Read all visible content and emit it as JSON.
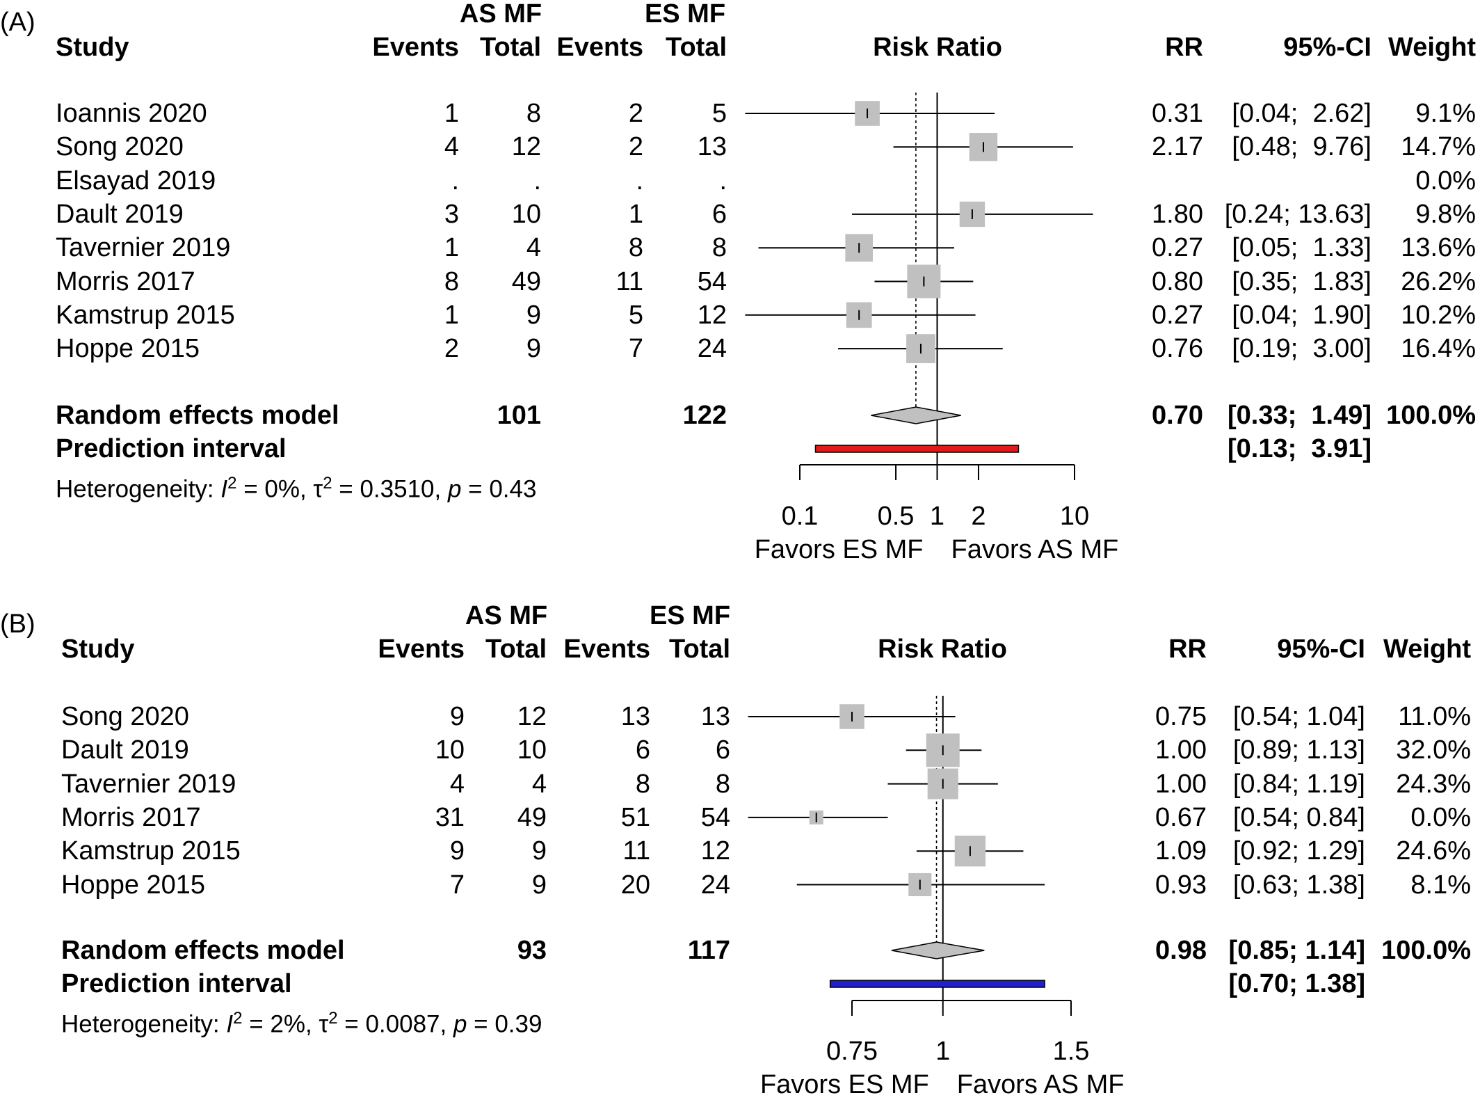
{
  "chart_data": [
    {
      "type": "forest",
      "panel_label": "(A)",
      "group_headers": {
        "experimental": "AS MF",
        "control": "ES MF"
      },
      "columns": {
        "study": "Study",
        "events_e": "Events",
        "total_e": "Total",
        "events_c": "Events",
        "total_c": "Total",
        "plot": "Risk Ratio",
        "rr": "RR",
        "ci": "95%-CI",
        "weight": "Weight"
      },
      "x_scale": "log",
      "x_ticks": [
        {
          "value": 0.1,
          "label": "0.1"
        },
        {
          "value": 0.5,
          "label": "0.5"
        },
        {
          "value": 1,
          "label": "1"
        },
        {
          "value": 2,
          "label": "2"
        },
        {
          "value": 10,
          "label": "10"
        }
      ],
      "xlim": [
        0.1,
        10
      ],
      "favors_left": "Favors ES MF",
      "favors_right": "Favors AS MF",
      "studies": [
        {
          "study": "Ioannis 2020",
          "events_e": "1",
          "total_e": "8",
          "events_c": "2",
          "total_c": "5",
          "rr": 0.31,
          "lower": 0.04,
          "upper": 2.62,
          "weight": 9.1,
          "rr_text": "0.31",
          "ci_text": "[0.04;  2.62]",
          "weight_text": "9.1%"
        },
        {
          "study": "Song 2020",
          "events_e": "4",
          "total_e": "12",
          "events_c": "2",
          "total_c": "13",
          "rr": 2.17,
          "lower": 0.48,
          "upper": 9.76,
          "weight": 14.7,
          "rr_text": "2.17",
          "ci_text": "[0.48;  9.76]",
          "weight_text": "14.7%"
        },
        {
          "study": "Elsayad 2019",
          "events_e": ".",
          "total_e": ".",
          "events_c": ".",
          "total_c": ".",
          "rr": null,
          "lower": null,
          "upper": null,
          "weight": 0.0,
          "rr_text": "",
          "ci_text": "",
          "weight_text": "0.0%"
        },
        {
          "study": "Dault 2019",
          "events_e": "3",
          "total_e": "10",
          "events_c": "1",
          "total_c": "6",
          "rr": 1.8,
          "lower": 0.24,
          "upper": 13.63,
          "weight": 9.8,
          "rr_text": "1.80",
          "ci_text": "[0.24; 13.63]",
          "weight_text": "9.8%"
        },
        {
          "study": "Tavernier 2019",
          "events_e": "1",
          "total_e": "4",
          "events_c": "8",
          "total_c": "8",
          "rr": 0.27,
          "lower": 0.05,
          "upper": 1.33,
          "weight": 13.6,
          "rr_text": "0.27",
          "ci_text": "[0.05;  1.33]",
          "weight_text": "13.6%"
        },
        {
          "study": "Morris 2017",
          "events_e": "8",
          "total_e": "49",
          "events_c": "11",
          "total_c": "54",
          "rr": 0.8,
          "lower": 0.35,
          "upper": 1.83,
          "weight": 26.2,
          "rr_text": "0.80",
          "ci_text": "[0.35;  1.83]",
          "weight_text": "26.2%"
        },
        {
          "study": "Kamstrup 2015",
          "events_e": "1",
          "total_e": "9",
          "events_c": "5",
          "total_c": "12",
          "rr": 0.27,
          "lower": 0.04,
          "upper": 1.9,
          "weight": 10.2,
          "rr_text": "0.27",
          "ci_text": "[0.04;  1.90]",
          "weight_text": "10.2%"
        },
        {
          "study": "Hoppe 2015",
          "events_e": "2",
          "total_e": "9",
          "events_c": "7",
          "total_c": "24",
          "rr": 0.76,
          "lower": 0.19,
          "upper": 3.0,
          "weight": 16.4,
          "rr_text": "0.76",
          "ci_text": "[0.19;  3.00]",
          "weight_text": "16.4%"
        }
      ],
      "random_effects": {
        "label": "Random effects model",
        "total_e": "101",
        "total_c": "122",
        "rr": 0.7,
        "lower": 0.33,
        "upper": 1.49,
        "rr_text": "0.70",
        "ci_text": "[0.33;  1.49]",
        "weight_text": "100.0%"
      },
      "prediction": {
        "label": "Prediction interval",
        "lower": 0.13,
        "upper": 3.91,
        "ci_text": "[0.13;  3.91]",
        "color": "#e31a1c"
      },
      "heterogeneity": {
        "prefix": "Heterogeneity: ",
        "I2_label": "I",
        "I2": " = 0%, ",
        "tau2_label": "τ",
        "tau2": " = 0.3510, ",
        "p_label": "p",
        "p": " = 0.43"
      }
    },
    {
      "type": "forest",
      "panel_label": "(B)",
      "group_headers": {
        "experimental": "AS MF",
        "control": "ES MF"
      },
      "columns": {
        "study": "Study",
        "events_e": "Events",
        "total_e": "Total",
        "events_c": "Events",
        "total_c": "Total",
        "plot": "Risk Ratio",
        "rr": "RR",
        "ci": "95%-CI",
        "weight": "Weight"
      },
      "x_scale": "log",
      "x_ticks": [
        {
          "value": 0.75,
          "label": "0.75"
        },
        {
          "value": 1,
          "label": "1"
        },
        {
          "value": 1.5,
          "label": "1.5"
        }
      ],
      "xlim": [
        0.75,
        1.5
      ],
      "favors_left": "Favors ES MF",
      "favors_right": "Favors AS MF",
      "studies": [
        {
          "study": "Song 2020",
          "events_e": "9",
          "total_e": "12",
          "events_c": "13",
          "total_c": "13",
          "rr": 0.75,
          "lower": 0.54,
          "upper": 1.04,
          "weight": 11.0,
          "rr_text": "0.75",
          "ci_text": "[0.54; 1.04]",
          "weight_text": "11.0%"
        },
        {
          "study": "Dault 2019",
          "events_e": "10",
          "total_e": "10",
          "events_c": "6",
          "total_c": "6",
          "rr": 1.0,
          "lower": 0.89,
          "upper": 1.13,
          "weight": 32.0,
          "rr_text": "1.00",
          "ci_text": "[0.89; 1.13]",
          "weight_text": "32.0%"
        },
        {
          "study": "Tavernier 2019",
          "events_e": "4",
          "total_e": "4",
          "events_c": "8",
          "total_c": "8",
          "rr": 1.0,
          "lower": 0.84,
          "upper": 1.19,
          "weight": 24.3,
          "rr_text": "1.00",
          "ci_text": "[0.84; 1.19]",
          "weight_text": "24.3%"
        },
        {
          "study": "Morris 2017",
          "events_e": "31",
          "total_e": "49",
          "events_c": "51",
          "total_c": "54",
          "rr": 0.67,
          "lower": 0.54,
          "upper": 0.84,
          "weight": 0.0,
          "rr_text": "0.67",
          "ci_text": "[0.54; 0.84]",
          "weight_text": "0.0%"
        },
        {
          "study": "Kamstrup 2015",
          "events_e": "9",
          "total_e": "9",
          "events_c": "11",
          "total_c": "12",
          "rr": 1.09,
          "lower": 0.92,
          "upper": 1.29,
          "weight": 24.6,
          "rr_text": "1.09",
          "ci_text": "[0.92; 1.29]",
          "weight_text": "24.6%"
        },
        {
          "study": "Hoppe 2015",
          "events_e": "7",
          "total_e": "9",
          "events_c": "20",
          "total_c": "24",
          "rr": 0.93,
          "lower": 0.63,
          "upper": 1.38,
          "weight": 8.1,
          "rr_text": "0.93",
          "ci_text": "[0.63; 1.38]",
          "weight_text": "8.1%"
        }
      ],
      "random_effects": {
        "label": "Random effects model",
        "total_e": "93",
        "total_c": "117",
        "rr": 0.98,
        "lower": 0.85,
        "upper": 1.14,
        "rr_text": "0.98",
        "ci_text": "[0.85; 1.14]",
        "weight_text": "100.0%"
      },
      "prediction": {
        "label": "Prediction interval",
        "lower": 0.7,
        "upper": 1.38,
        "ci_text": "[0.70; 1.38]",
        "color": "#1f1fd0"
      },
      "heterogeneity": {
        "prefix": "Heterogeneity: ",
        "I2_label": "I",
        "I2": " = 2%, ",
        "tau2_label": "τ",
        "tau2": " = 0.0087, ",
        "p_label": "p",
        "p": " = 0.39"
      }
    }
  ]
}
